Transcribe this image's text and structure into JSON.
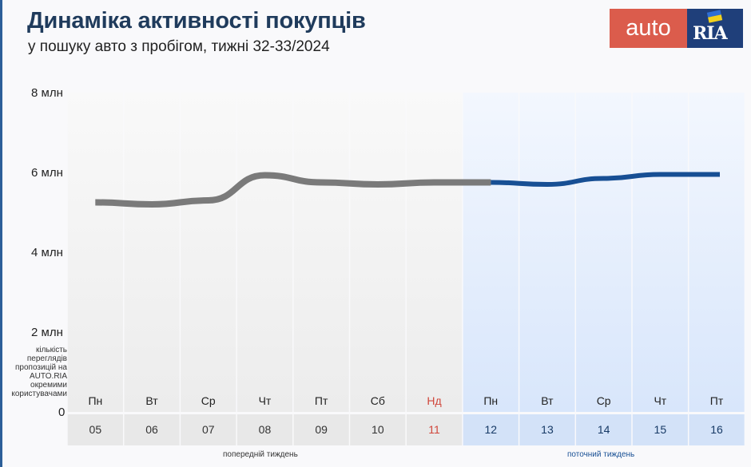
{
  "header": {
    "title": "Динаміка активності покупців",
    "subtitle": "у пошуку авто з пробігом, тижні 32-33/2024"
  },
  "logo": {
    "part1": "auto",
    "part2": "RIA"
  },
  "chart_data": {
    "type": "line",
    "y_ticks": [
      "8 млн",
      "6 млн",
      "4 млн",
      "2 млн",
      "0"
    ],
    "ylim": [
      0,
      8000000
    ],
    "ylabel": "кількість переглядів пропозицій на AUTO.RIA окремими користувачами",
    "weekdays": [
      "Пн",
      "Вт",
      "Ср",
      "Чт",
      "Пт",
      "Сб",
      "Нд",
      "Пн",
      "Вт",
      "Ср",
      "Чт",
      "Пт"
    ],
    "dates": [
      "05",
      "06",
      "07",
      "08",
      "09",
      "10",
      "11",
      "12",
      "13",
      "14",
      "15",
      "16"
    ],
    "series": [
      {
        "values": [
          5.25,
          5.2,
          5.3,
          5.93,
          5.75,
          5.7,
          5.75,
          5.75,
          5.7,
          5.85,
          5.95,
          5.95
        ],
        "unit": "млн"
      }
    ],
    "previous_week_label": "попередній тиждень",
    "current_week_label": "поточний тиждень",
    "colors": {
      "previous_line": "#7a7a7a",
      "current_line": "#174f94",
      "sunday_text": "#d0463b",
      "current_week_caption": "#174f94",
      "previous_bg": "#ececec",
      "current_bg": "#d8e6fb"
    },
    "grid": false
  }
}
